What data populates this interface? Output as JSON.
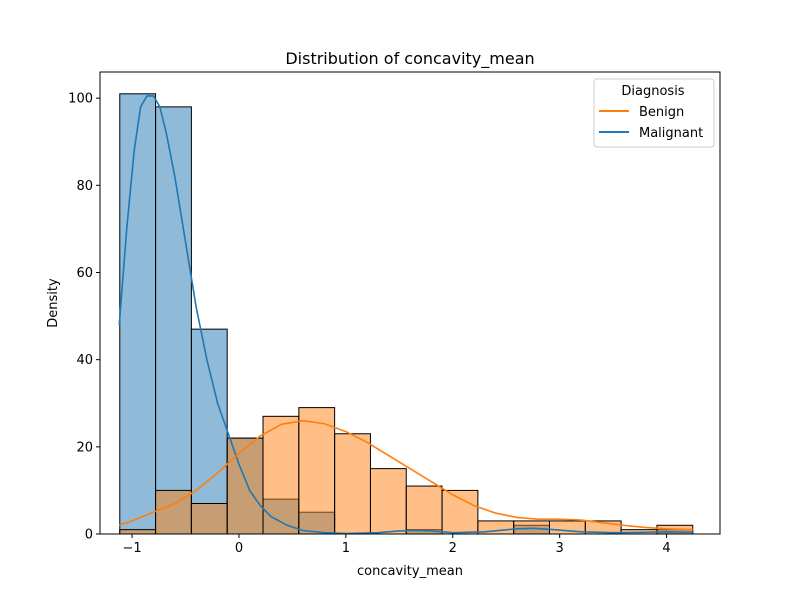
{
  "chart_data": {
    "type": "histogram",
    "title": "Distribution of concavity_mean",
    "xlabel": "concavity_mean",
    "ylabel": "Density",
    "xlim": [
      -1.3,
      4.5
    ],
    "ylim": [
      0,
      106
    ],
    "x_ticks": [
      -1,
      0,
      1,
      2,
      3,
      4
    ],
    "y_ticks": [
      0,
      20,
      40,
      60,
      80,
      100
    ],
    "bin_edges": [
      -1.115,
      -0.78,
      -0.445,
      -0.11,
      0.225,
      0.56,
      0.895,
      1.23,
      1.565,
      1.9,
      2.235,
      2.57,
      2.905,
      3.24,
      3.575,
      3.91,
      4.245
    ],
    "grid": false,
    "legend": {
      "title": "Diagnosis",
      "placement": "top-right",
      "entries": [
        {
          "label": "Benign",
          "color": "#ff7f0e"
        },
        {
          "label": "Malignant",
          "color": "#1f77b4"
        }
      ]
    },
    "series": [
      {
        "name": "Malignant",
        "color": "#1f77b4",
        "counts": [
          101,
          98,
          47,
          22,
          8,
          5,
          0,
          0,
          1,
          0,
          0,
          2,
          0,
          0,
          0,
          1
        ],
        "kde": [
          [
            -1.12,
            48
          ],
          [
            -1.05,
            70
          ],
          [
            -0.98,
            88
          ],
          [
            -0.92,
            98
          ],
          [
            -0.86,
            100.5
          ],
          [
            -0.8,
            100.5
          ],
          [
            -0.74,
            98
          ],
          [
            -0.68,
            92
          ],
          [
            -0.6,
            82
          ],
          [
            -0.5,
            67
          ],
          [
            -0.4,
            52
          ],
          [
            -0.3,
            40
          ],
          [
            -0.2,
            30
          ],
          [
            -0.1,
            23
          ],
          [
            0.0,
            16
          ],
          [
            0.1,
            10
          ],
          [
            0.2,
            6.5
          ],
          [
            0.3,
            4
          ],
          [
            0.45,
            2
          ],
          [
            0.6,
            0.8
          ],
          [
            0.8,
            0.3
          ],
          [
            1.0,
            0.1
          ],
          [
            1.3,
            0.3
          ],
          [
            1.5,
            0.7
          ],
          [
            1.65,
            0.8
          ],
          [
            1.8,
            0.7
          ],
          [
            2.0,
            0.3
          ],
          [
            2.3,
            0.5
          ],
          [
            2.6,
            1.2
          ],
          [
            2.75,
            1.3
          ],
          [
            2.95,
            1.0
          ],
          [
            3.2,
            0.5
          ],
          [
            3.5,
            0.3
          ],
          [
            3.8,
            0.4
          ],
          [
            4.0,
            0.5
          ],
          [
            4.25,
            0.4
          ]
        ]
      },
      {
        "name": "Benign",
        "color": "#ff7f0e",
        "counts": [
          1,
          10,
          7,
          22,
          27,
          29,
          23,
          15,
          11,
          10,
          3,
          3,
          3,
          3,
          1,
          2
        ],
        "kde": [
          [
            -1.12,
            2
          ],
          [
            -1.0,
            3
          ],
          [
            -0.8,
            5
          ],
          [
            -0.6,
            7
          ],
          [
            -0.4,
            10
          ],
          [
            -0.2,
            14
          ],
          [
            0.0,
            18.5
          ],
          [
            0.2,
            22.5
          ],
          [
            0.4,
            25.2
          ],
          [
            0.6,
            26
          ],
          [
            0.8,
            25.3
          ],
          [
            1.0,
            23.5
          ],
          [
            1.2,
            21
          ],
          [
            1.4,
            18
          ],
          [
            1.6,
            15
          ],
          [
            1.8,
            12
          ],
          [
            2.0,
            9
          ],
          [
            2.2,
            6.5
          ],
          [
            2.4,
            4.8
          ],
          [
            2.6,
            3.8
          ],
          [
            2.8,
            3.4
          ],
          [
            3.0,
            3.4
          ],
          [
            3.2,
            3.2
          ],
          [
            3.4,
            2.6
          ],
          [
            3.6,
            2
          ],
          [
            3.8,
            1.5
          ],
          [
            4.0,
            1.2
          ],
          [
            4.25,
            1.0
          ]
        ]
      }
    ]
  }
}
